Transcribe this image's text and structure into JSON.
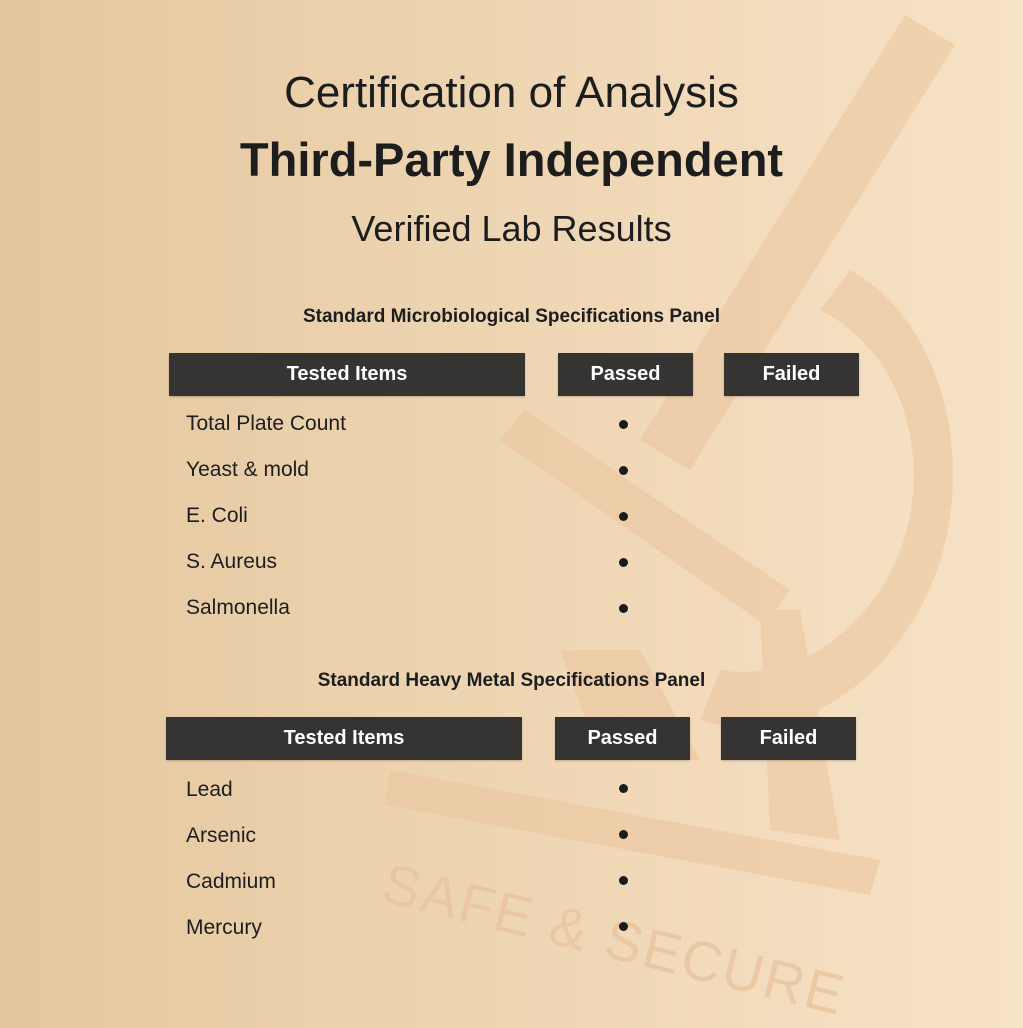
{
  "header": {
    "title": "Certification of Analysis",
    "subtitle": "Third-Party Independent",
    "tagline": "Verified Lab Results"
  },
  "watermark": {
    "text": "SAFE & SECURE",
    "icon": "microscope-icon",
    "color": "#e9c39d"
  },
  "columns": [
    "Tested Items",
    "Passed",
    "Failed"
  ],
  "panels": [
    {
      "title": "Standard Microbiological Specifications Panel",
      "rows": [
        {
          "item": "Total Plate Count",
          "result": "passed"
        },
        {
          "item": "Yeast & mold",
          "result": "passed"
        },
        {
          "item": "E. Coli",
          "result": "passed"
        },
        {
          "item": "S. Aureus",
          "result": "passed"
        },
        {
          "item": "Salmonella",
          "result": "passed"
        }
      ]
    },
    {
      "title": "Standard Heavy Metal Specifications Panel",
      "rows": [
        {
          "item": "Lead",
          "result": "passed"
        },
        {
          "item": "Arsenic",
          "result": "passed"
        },
        {
          "item": "Cadmium",
          "result": "passed"
        },
        {
          "item": "Mercury",
          "result": "passed"
        }
      ]
    }
  ],
  "colors": {
    "header_bar": "#363432",
    "background": "#ecd3af"
  }
}
